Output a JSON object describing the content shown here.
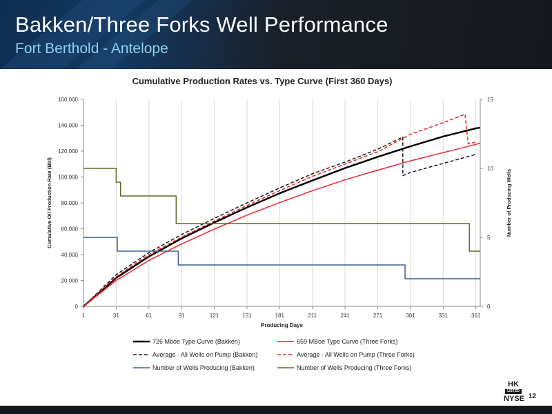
{
  "slide": {
    "title": "Bakken/Three Forks Well Performance",
    "subtitle": "Fort Berthold - Antelope",
    "page_number": "12",
    "logo": {
      "line1": "HK",
      "line2": "LISTED",
      "line3": "NYSE"
    }
  },
  "colors": {
    "bakken_type": "#000000",
    "tf_type": "#e8262a",
    "bakken_avg": "#1a1a1a",
    "tf_avg": "#e8262a",
    "bakken_wells": "#3c5f8e",
    "tf_wells": "#5b6a27"
  },
  "chart_data": {
    "type": "line",
    "title": "Cumulative Production Rates vs. Type Curve (First 360 Days)",
    "xlabel": "Producing Days",
    "ylabel": "Cumulative Oil Production Rate (Bbl)",
    "y2label": "Number of Producing Wells",
    "xlim": [
      1,
      365
    ],
    "ylim": [
      0,
      160000
    ],
    "y2lim": [
      0,
      15
    ],
    "x_ticks": [
      "1",
      "31",
      "61",
      "91",
      "121",
      "151",
      "181",
      "211",
      "241",
      "271",
      "301",
      "331",
      "361"
    ],
    "y_ticks": [
      "0",
      "20,000",
      "40,000",
      "60,000",
      "80,000",
      "100,000",
      "120,000",
      "140,000",
      "160,000"
    ],
    "y2_ticks": [
      "0",
      "5",
      "10",
      "15"
    ],
    "grid": "vertical",
    "legend": "bottom",
    "series": [
      {
        "name": "726 Mboe Type Curve (Bakken)",
        "axis": "left",
        "style": "solid-thick",
        "color": "#000000",
        "x": [
          1,
          31,
          61,
          91,
          121,
          151,
          181,
          211,
          241,
          271,
          301,
          331,
          361,
          365
        ],
        "y": [
          0,
          22000,
          38500,
          52500,
          64800,
          76500,
          87400,
          97300,
          106900,
          115600,
          123700,
          131300,
          137600,
          138200
        ]
      },
      {
        "name": "659 MBoe Type Curve (Three Forks)",
        "axis": "left",
        "style": "solid",
        "color": "#e8262a",
        "x": [
          1,
          31,
          61,
          91,
          121,
          151,
          181,
          211,
          241,
          271,
          301,
          331,
          361,
          365
        ],
        "y": [
          0,
          20000,
          35500,
          48200,
          59700,
          70500,
          80200,
          89400,
          97800,
          105300,
          112500,
          118800,
          125200,
          126300
        ]
      },
      {
        "name": "Average - All Wells on Pump (Bakken)",
        "axis": "left",
        "style": "dashed",
        "color": "#1a1a1a",
        "x": [
          1,
          31,
          61,
          91,
          121,
          151,
          181,
          211,
          241,
          271,
          294,
          294,
          301,
          331,
          361
        ],
        "y": [
          0,
          24500,
          41500,
          55500,
          68000,
          80000,
          91500,
          102500,
          111500,
          121500,
          131000,
          101000,
          103500,
          110500,
          117500
        ]
      },
      {
        "name": "Average - All Wells on Pump (Three Forks)",
        "axis": "left",
        "style": "dashed",
        "color": "#e8262a",
        "x": [
          1,
          31,
          61,
          91,
          121,
          151,
          181,
          211,
          241,
          271,
          301,
          331,
          351,
          354,
          361
        ],
        "y": [
          0,
          23000,
          40000,
          53500,
          66000,
          78000,
          89500,
          100500,
          110000,
          119500,
          133000,
          142000,
          148500,
          125500,
          127000
        ]
      },
      {
        "name": "Number of Wells Producing (Bakken)",
        "axis": "right",
        "style": "solid",
        "color": "#3c5f8e",
        "x": [
          1,
          32,
          32,
          88,
          88,
          296,
          296,
          365
        ],
        "y": [
          5,
          5,
          4,
          4,
          3,
          3,
          2,
          2
        ]
      },
      {
        "name": "Number of Wells Producing (Three Forks)",
        "axis": "right",
        "style": "solid",
        "color": "#5b6a27",
        "x": [
          1,
          31,
          31,
          35,
          35,
          86,
          86,
          355,
          355,
          365
        ],
        "y": [
          10,
          10,
          9,
          9,
          8,
          8,
          6,
          6,
          4,
          4
        ]
      }
    ]
  }
}
